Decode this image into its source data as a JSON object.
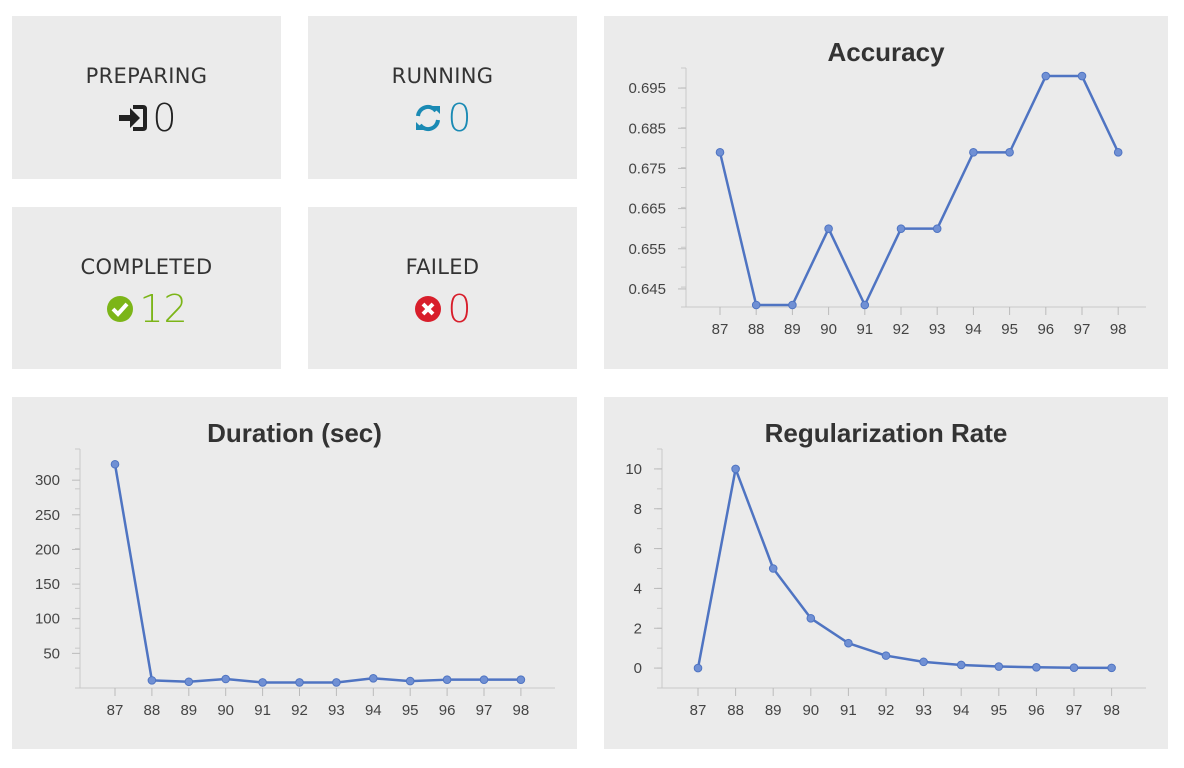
{
  "stats": {
    "preparing": {
      "label": "PREPARING",
      "value": "0",
      "color": "#222222",
      "icon": "sign-in-icon"
    },
    "running": {
      "label": "RUNNING",
      "value": "0",
      "color": "#1a8ab4",
      "icon": "refresh-icon"
    },
    "completed": {
      "label": "COMPLETED",
      "value": "12",
      "color": "#7cb518",
      "icon": "check-circle-icon"
    },
    "failed": {
      "label": "FAILED",
      "value": "0",
      "color": "#d81e2b",
      "icon": "x-circle-icon"
    }
  },
  "line_color": "#4f74c2",
  "chart_data": [
    {
      "id": "accuracy",
      "type": "line",
      "title": "Accuracy",
      "x": [
        87,
        88,
        89,
        90,
        91,
        92,
        93,
        94,
        95,
        96,
        97,
        98
      ],
      "values": [
        0.679,
        0.641,
        0.641,
        0.66,
        0.641,
        0.66,
        0.66,
        0.679,
        0.679,
        0.698,
        0.698,
        0.679
      ],
      "yticks": [
        "0.645",
        "0.655",
        "0.665",
        "0.675",
        "0.685",
        "0.695"
      ],
      "ylim": [
        0.6405,
        0.7
      ]
    },
    {
      "id": "duration",
      "type": "line",
      "title": "Duration (sec)",
      "x": [
        87,
        88,
        89,
        90,
        91,
        92,
        93,
        94,
        95,
        96,
        97,
        98
      ],
      "values": [
        323,
        11,
        9,
        13,
        8,
        8,
        8,
        14,
        10,
        12,
        12,
        12
      ],
      "yticks": [
        "50",
        "100",
        "150",
        "200",
        "250",
        "300"
      ],
      "ylim": [
        0,
        345
      ]
    },
    {
      "id": "regularization",
      "type": "line",
      "title": "Regularization Rate",
      "x": [
        87,
        88,
        89,
        90,
        91,
        92,
        93,
        94,
        95,
        96,
        97,
        98
      ],
      "values": [
        0,
        10,
        5,
        2.5,
        1.25,
        0.625,
        0.3125,
        0.156,
        0.078,
        0.039,
        0.0195,
        0.01
      ],
      "yticks": [
        "0",
        "2",
        "4",
        "6",
        "8",
        "10"
      ],
      "ylim": [
        -1,
        11
      ]
    }
  ]
}
